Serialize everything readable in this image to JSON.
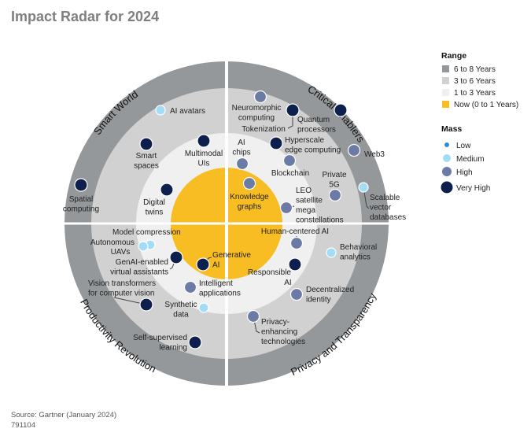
{
  "title": "Impact Radar for 2024",
  "source": "Source: Gartner (January 2024)",
  "doc_id": "791104",
  "colors": {
    "range_6_8": "#95989a",
    "range_3_6": "#d1d1d1",
    "range_1_3": "#f0f0f0",
    "range_now": "#f7bd22",
    "mass_low": "#2e8fd0",
    "mass_medium": "#a3dcf5",
    "mass_high": "#6b7ba5",
    "mass_very_high": "#0d1f4c"
  },
  "segments": [
    "Smart World",
    "Critical Enablers",
    "Productivity Revolution",
    "Privacy and Transparency"
  ],
  "legend": {
    "range_title": "Range",
    "ranges": [
      "6 to 8 Years",
      "3 to 6 Years",
      "1 to 3 Years",
      "Now (0 to 1 Years)"
    ],
    "mass_title": "Mass",
    "masses": [
      "Low",
      "Medium",
      "High",
      "Very High"
    ]
  },
  "items": [
    {
      "lines": [
        "AI avatars"
      ],
      "segment": "Smart World",
      "range": "3 to 6 Years",
      "mass": "Medium"
    },
    {
      "lines": [
        "Smart",
        "spaces"
      ],
      "segment": "Smart World",
      "range": "3 to 6 Years",
      "mass": "Very High"
    },
    {
      "lines": [
        "Multimodal",
        "UIs"
      ],
      "segment": "Smart World",
      "range": "1 to 3 Years",
      "mass": "Very High"
    },
    {
      "lines": [
        "Spatial",
        "computing"
      ],
      "segment": "Smart World",
      "range": "6 to 8 Years",
      "mass": "Very High"
    },
    {
      "lines": [
        "Digital",
        "twins"
      ],
      "segment": "Smart World",
      "range": "1 to 3 Years",
      "mass": "Very High"
    },
    {
      "lines": [
        "Neuromorphic",
        "computing"
      ],
      "segment": "Critical Enablers",
      "range": "3 to 6 Years",
      "mass": "High"
    },
    {
      "lines": [
        "Tokenization"
      ],
      "segment": "Critical Enablers",
      "range": "3 to 6 Years",
      "mass": "Very High"
    },
    {
      "lines": [
        "Quantum",
        "processors"
      ],
      "segment": "Critical Enablers",
      "range": "6 to 8 Years",
      "mass": "Very High"
    },
    {
      "lines": [
        "Hyperscale",
        "edge computing"
      ],
      "segment": "Critical Enablers",
      "range": "3 to 6 Years",
      "mass": "Very High"
    },
    {
      "lines": [
        "Web3"
      ],
      "segment": "Critical Enablers",
      "range": "6 to 8 Years",
      "mass": "High"
    },
    {
      "lines": [
        "AI",
        "chips"
      ],
      "segment": "Critical Enablers",
      "range": "1 to 3 Years",
      "mass": "High"
    },
    {
      "lines": [
        "Blockchain"
      ],
      "segment": "Critical Enablers",
      "range": "1 to 3 Years",
      "mass": "High"
    },
    {
      "lines": [
        "Knowledge",
        "graphs"
      ],
      "segment": "Critical Enablers",
      "range": "Now (0 to 1 Years)",
      "mass": "High"
    },
    {
      "lines": [
        "Private",
        "5G"
      ],
      "segment": "Critical Enablers",
      "range": "3 to 6 Years",
      "mass": "High"
    },
    {
      "lines": [
        "Scalable",
        "vector",
        "databases"
      ],
      "segment": "Critical Enablers",
      "range": "6 to 8 Years",
      "mass": "Medium"
    },
    {
      "lines": [
        "LEO",
        "satellite",
        "mega",
        "constellations"
      ],
      "segment": "Critical Enablers",
      "range": "1 to 3 Years",
      "mass": "High"
    },
    {
      "lines": [
        "Model compression"
      ],
      "segment": "Productivity Revolution",
      "range": "1 to 3 Years",
      "mass": "Medium"
    },
    {
      "lines": [
        "Autonomous",
        "UAVs"
      ],
      "segment": "Productivity Revolution",
      "range": "1 to 3 Years",
      "mass": "Medium"
    },
    {
      "lines": [
        "GenAI-enabled",
        "virtual assistants"
      ],
      "segment": "Productivity Revolution",
      "range": "1 to 3 Years",
      "mass": "Very High"
    },
    {
      "lines": [
        "Generative",
        "AI"
      ],
      "segment": "Productivity Revolution",
      "range": "Now (0 to 1 Years)",
      "mass": "Very High"
    },
    {
      "lines": [
        "Intelligent",
        "applications"
      ],
      "segment": "Productivity Revolution",
      "range": "1 to 3 Years",
      "mass": "High"
    },
    {
      "lines": [
        "Synthetic",
        "data"
      ],
      "segment": "Productivity Revolution",
      "range": "1 to 3 Years",
      "mass": "Medium"
    },
    {
      "lines": [
        "Vision transformers",
        "for computer vision"
      ],
      "segment": "Productivity Revolution",
      "range": "3 to 6 Years",
      "mass": "Very High"
    },
    {
      "lines": [
        "Self-supervised",
        "learning"
      ],
      "segment": "Productivity Revolution",
      "range": "3 to 6 Years",
      "mass": "Very High"
    },
    {
      "lines": [
        "Human-centered  AI"
      ],
      "segment": "Privacy and Transparency",
      "range": "1 to 3 Years",
      "mass": "High"
    },
    {
      "lines": [
        "Behavioral",
        "analytics"
      ],
      "segment": "Privacy and Transparency",
      "range": "3 to 6 Years",
      "mass": "Medium"
    },
    {
      "lines": [
        "Responsible",
        "AI"
      ],
      "segment": "Privacy and Transparency",
      "range": "1 to 3 Years",
      "mass": "Very High"
    },
    {
      "lines": [
        "Decentralized",
        "identity"
      ],
      "segment": "Privacy and Transparency",
      "range": "3 to 6 Years",
      "mass": "High"
    },
    {
      "lines": [
        "Privacy-",
        "enhancing",
        "technologies"
      ],
      "segment": "Privacy and Transparency",
      "range": "3 to 6 Years",
      "mass": "High"
    }
  ]
}
